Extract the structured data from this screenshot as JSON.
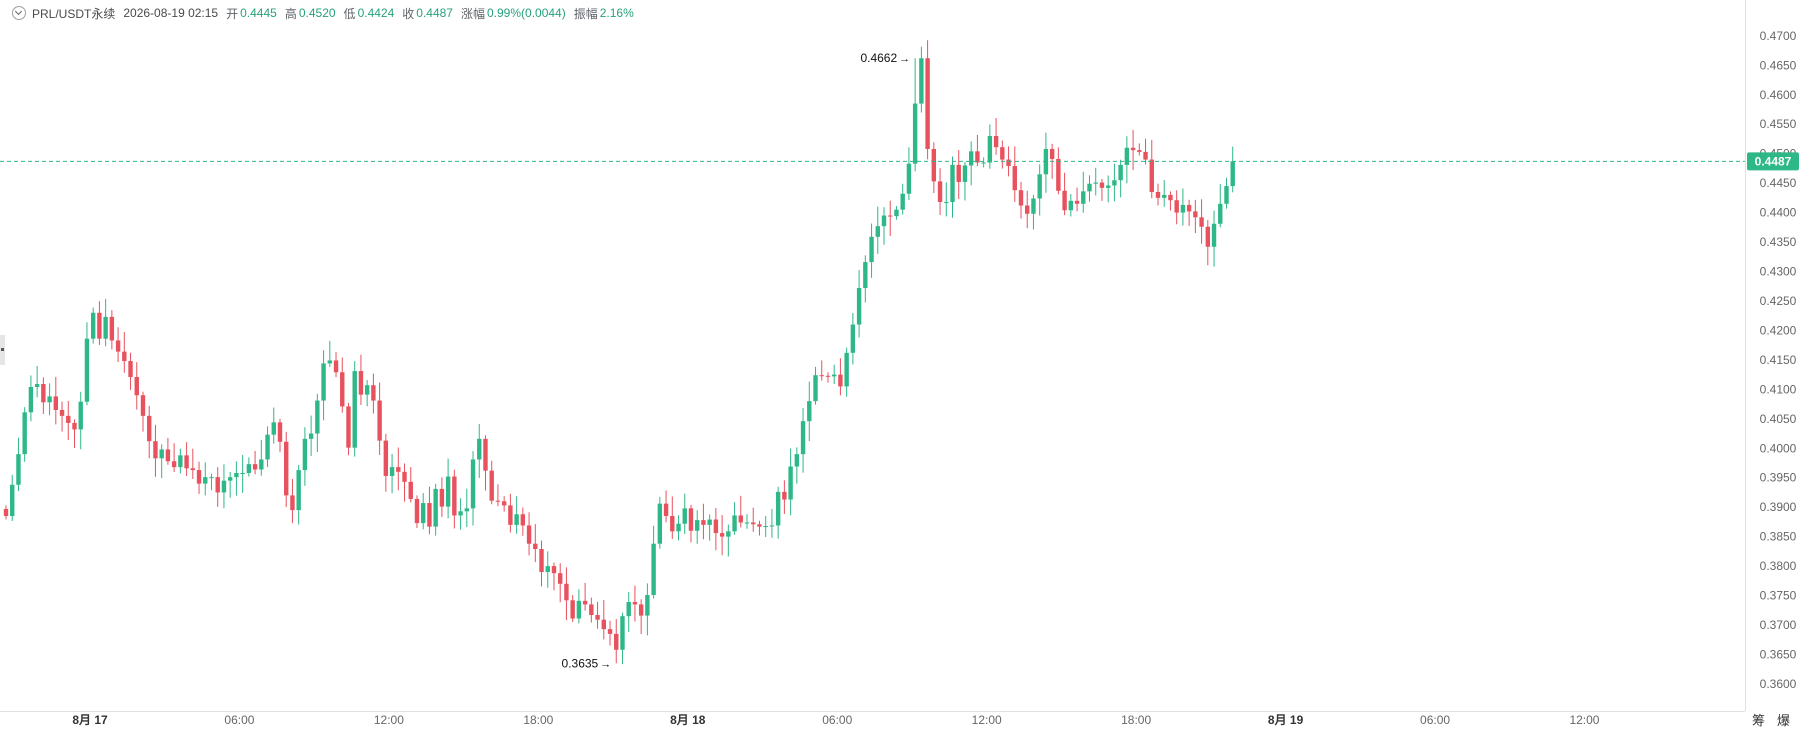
{
  "legend": {
    "symbol": "PRL/USDT永续",
    "datetime": "2026-08-19 02:15",
    "open_label": "开",
    "open": "0.4445",
    "high_label": "高",
    "high": "0.4520",
    "low_label": "低",
    "low": "0.4424",
    "close_label": "收",
    "close": "0.4487",
    "change_label": "涨幅",
    "change": "0.99%(0.0044)",
    "amplitude_label": "振幅",
    "amplitude": "2.16%"
  },
  "corner": {
    "left_glyph": "筹",
    "right_glyph": "爆"
  },
  "colors": {
    "up": "#2eb887",
    "down": "#e8515e",
    "current_line": "#2eb887",
    "axis_text": "#666666",
    "grid": "#f3f3f3"
  },
  "chart_data": {
    "type": "candlestick",
    "x_ticks": [
      "8月 17",
      "06:00",
      "12:00",
      "18:00",
      "8月 18",
      "06:00",
      "12:00",
      "18:00",
      "8月 19",
      "06:00",
      "12:00"
    ],
    "y_ticks": [
      "0.4700",
      "0.4650",
      "0.4600",
      "0.4550",
      "0.4500",
      "0.4450",
      "0.4400",
      "0.4350",
      "0.4300",
      "0.4250",
      "0.4200",
      "0.4150",
      "0.4100",
      "0.4050",
      "0.4000",
      "0.3950",
      "0.3900",
      "0.3850",
      "0.3800",
      "0.3750",
      "0.3700",
      "0.3650",
      "0.3600"
    ],
    "ylim": [
      0.3588,
      0.4715
    ],
    "interval_minutes": 15,
    "current_price": "0.4487",
    "annotations": {
      "high_label": "0.4662",
      "high_value": 0.4662,
      "high_index": 146,
      "low_label": "0.3635",
      "low_value": 0.3635,
      "low_index": 98
    },
    "close": [
      0.3885,
      0.3938,
      0.399,
      0.4061,
      0.4104,
      0.4109,
      0.4078,
      0.4088,
      0.4065,
      0.4055,
      0.4043,
      0.4032,
      0.4079,
      0.4186,
      0.423,
      0.4186,
      0.4223,
      0.4183,
      0.4164,
      0.4148,
      0.4121,
      0.409,
      0.4055,
      0.4012,
      0.3983,
      0.3998,
      0.3978,
      0.3968,
      0.3988,
      0.3966,
      0.3963,
      0.394,
      0.3951,
      0.3951,
      0.3925,
      0.3945,
      0.3951,
      0.3958,
      0.3958,
      0.3973,
      0.3964,
      0.3981,
      0.4023,
      0.4044,
      0.4011,
      0.392,
      0.3895,
      0.3963,
      0.4016,
      0.4025,
      0.4081,
      0.4144,
      0.4149,
      0.4129,
      0.4071,
      0.4001,
      0.4131,
      0.4091,
      0.4107,
      0.4081,
      0.4013,
      0.3953,
      0.3968,
      0.396,
      0.3943,
      0.3914,
      0.3873,
      0.3907,
      0.3867,
      0.3931,
      0.3901,
      0.3952,
      0.3886,
      0.3893,
      0.3898,
      0.3981,
      0.4016,
      0.3962,
      0.3911,
      0.391,
      0.3903,
      0.387,
      0.3888,
      0.3869,
      0.3838,
      0.3829,
      0.379,
      0.38,
      0.3788,
      0.377,
      0.3742,
      0.3711,
      0.3741,
      0.3735,
      0.3717,
      0.3709,
      0.3693,
      0.3685,
      0.3658,
      0.3715,
      0.3739,
      0.3735,
      0.3716,
      0.3751,
      0.3838,
      0.3906,
      0.3885,
      0.3859,
      0.3872,
      0.3898,
      0.386,
      0.3878,
      0.387,
      0.3879,
      0.3856,
      0.385,
      0.3859,
      0.3886,
      0.3874,
      0.3874,
      0.3871,
      0.3867,
      0.3868,
      0.3869,
      0.3926,
      0.3913,
      0.3969,
      0.399,
      0.4046,
      0.408,
      0.4124,
      0.4123,
      0.4122,
      0.4125,
      0.4105,
      0.4162,
      0.421,
      0.4272,
      0.4316,
      0.4359,
      0.4377,
      0.4395,
      0.4394,
      0.4405,
      0.4432,
      0.4483,
      0.4585,
      0.4662,
      0.4508,
      0.4453,
      0.4418,
      0.4418,
      0.4481,
      0.4452,
      0.448,
      0.4504,
      0.4485,
      0.4485,
      0.453,
      0.4511,
      0.449,
      0.4479,
      0.4438,
      0.4412,
      0.4398,
      0.4424,
      0.4465,
      0.4508,
      0.4491,
      0.4437,
      0.4404,
      0.442,
      0.4415,
      0.4436,
      0.4449,
      0.4451,
      0.4442,
      0.4446,
      0.4455,
      0.4481,
      0.451,
      0.4506,
      0.4503,
      0.449,
      0.4435,
      0.4425,
      0.443,
      0.4421,
      0.44,
      0.4413,
      0.4402,
      0.4392,
      0.4376,
      0.4342,
      0.4381,
      0.4415,
      0.4445,
      0.4487
    ]
  }
}
